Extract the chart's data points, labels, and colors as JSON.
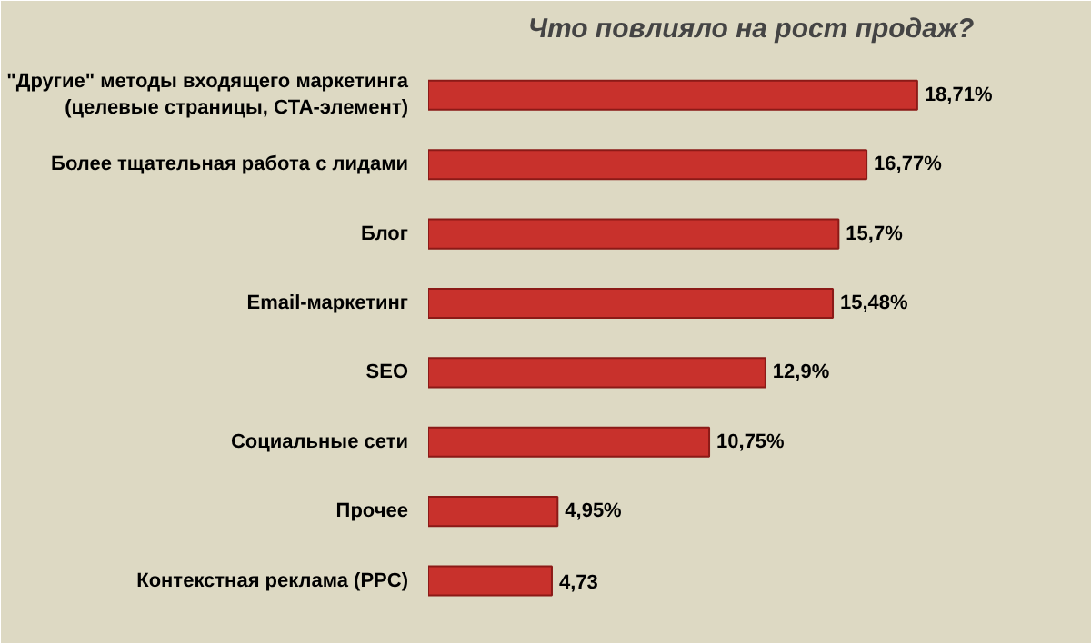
{
  "chart_data": {
    "type": "bar",
    "orientation": "horizontal",
    "title": "Что повлияло на рост продаж?",
    "categories": [
      "\"Другие\" методы входящего маркетинга\n(целевые страницы, CTA-элемент)",
      "Более тщательная работа с лидами",
      "Блог",
      "Email-маркетинг",
      "SEO",
      "Социальные сети",
      "Прочее",
      "Контекстная реклама (PPC)"
    ],
    "values": [
      18.71,
      16.77,
      15.7,
      15.48,
      12.9,
      10.75,
      4.95,
      4.73
    ],
    "value_labels": [
      "18,71%",
      "16,77%",
      "15,7%",
      "15,48%",
      "12,9%",
      "10,75%",
      "4,95%",
      "4,73"
    ],
    "color": "#c8312c",
    "grid": false
  }
}
